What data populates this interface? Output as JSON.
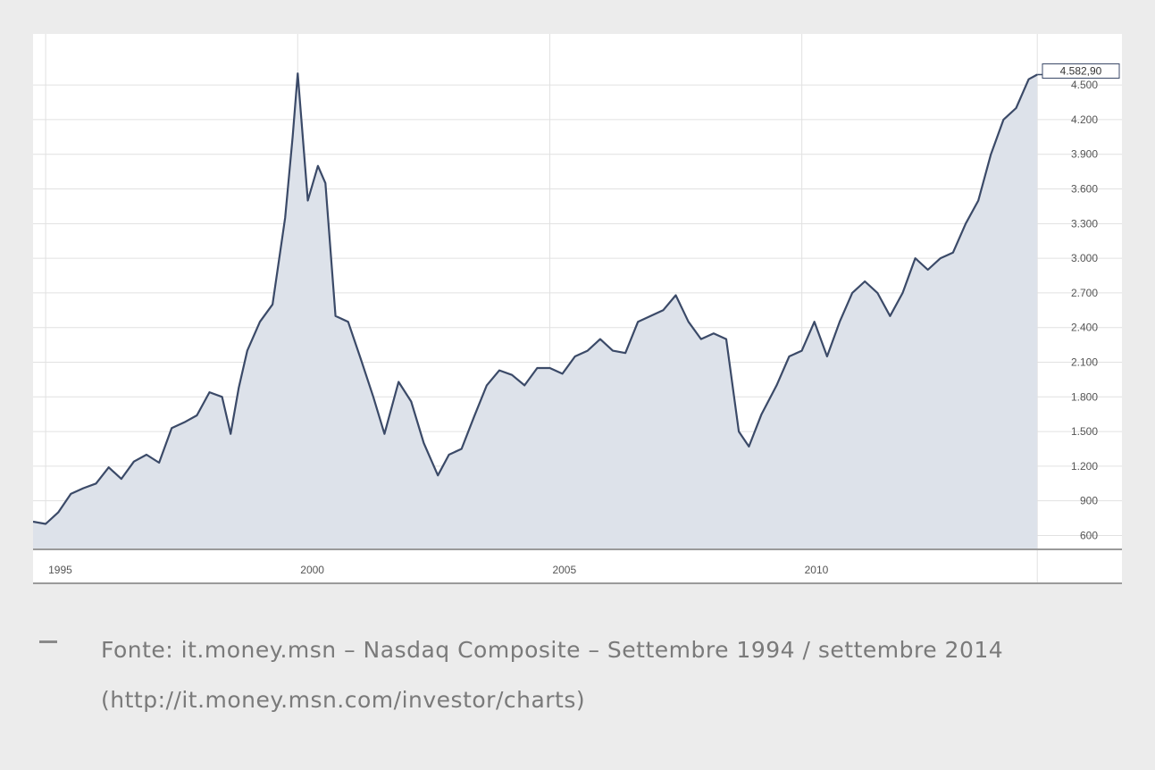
{
  "chart_data": {
    "type": "area",
    "title": "",
    "xlabel": "",
    "ylabel": "",
    "x_tick_labels": [
      "1995",
      "2000",
      "2005",
      "2010"
    ],
    "y_tick_labels": [
      "600",
      "900",
      "1.200",
      "1.500",
      "1.800",
      "2.100",
      "2.400",
      "2.700",
      "3.000",
      "3.300",
      "3.600",
      "3.900",
      "4.200",
      "4.500"
    ],
    "ylim": [
      480,
      4880
    ],
    "xlim": [
      1994.75,
      2016.35
    ],
    "grid": true,
    "last_value_label": "4.582,90",
    "series": [
      {
        "x": [
          1994.75,
          1995.0,
          1995.25,
          1995.5,
          1995.75,
          1996.0,
          1996.25,
          1996.5,
          1996.75,
          1997.0,
          1997.25,
          1997.5,
          1997.75,
          1998.0,
          1998.25,
          1998.5,
          1998.67,
          1998.83,
          1999.0,
          1999.25,
          1999.5,
          1999.75,
          1999.9,
          2000.0,
          2000.2,
          2000.4,
          2000.55,
          2000.75,
          2001.0,
          2001.25,
          2001.5,
          2001.72,
          2002.0,
          2002.25,
          2002.5,
          2002.78,
          2003.0,
          2003.25,
          2003.5,
          2003.75,
          2004.0,
          2004.25,
          2004.5,
          2004.75,
          2005.0,
          2005.25,
          2005.5,
          2005.75,
          2006.0,
          2006.25,
          2006.5,
          2006.75,
          2007.0,
          2007.25,
          2007.5,
          2007.75,
          2008.0,
          2008.25,
          2008.5,
          2008.75,
          2008.95,
          2009.2,
          2009.5,
          2009.75,
          2010.0,
          2010.25,
          2010.5,
          2010.75,
          2011.0,
          2011.25,
          2011.5,
          2011.75,
          2012.0,
          2012.25,
          2012.5,
          2012.75,
          2013.0,
          2013.25,
          2013.5,
          2013.75,
          2014.0,
          2014.25,
          2014.5,
          2014.67
        ],
        "y": [
          720,
          700,
          800,
          960,
          1010,
          1050,
          1190,
          1090,
          1240,
          1300,
          1230,
          1530,
          1580,
          1640,
          1840,
          1800,
          1480,
          1880,
          2200,
          2450,
          2600,
          3350,
          4050,
          4600,
          3500,
          3800,
          3650,
          2500,
          2450,
          2130,
          1800,
          1480,
          1930,
          1760,
          1400,
          1120,
          1300,
          1350,
          1630,
          1900,
          2030,
          1990,
          1900,
          2050,
          2050,
          2000,
          2150,
          2200,
          2300,
          2200,
          2180,
          2450,
          2500,
          2550,
          2680,
          2450,
          2300,
          2350,
          2300,
          1500,
          1370,
          1650,
          1900,
          2150,
          2200,
          2450,
          2150,
          2450,
          2700,
          2800,
          2700,
          2500,
          2700,
          3000,
          2900,
          3000,
          3050,
          3300,
          3500,
          3900,
          4200,
          4300,
          4550,
          4590
        ]
      }
    ]
  },
  "caption": {
    "text": "Fonte: it.money.msn – Nasdaq Composite – Settembre 1994 / settembre 2014 (http://it.money.msn.com/investor/charts)"
  },
  "colors": {
    "line": "#3b4a68",
    "fill": "#dde2ea",
    "grid": "#e1e1e1",
    "axis": "#9a9a9a",
    "background": "#ececec"
  }
}
